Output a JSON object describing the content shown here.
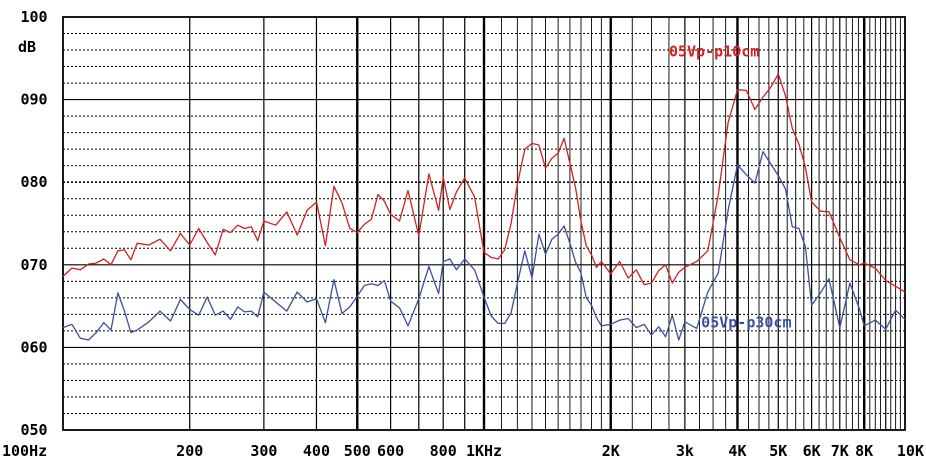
{
  "chart_data": {
    "type": "line",
    "ylabel": "dB",
    "ylim": [
      50,
      100
    ],
    "xlim": [
      100,
      10000
    ],
    "x_scale": "log",
    "grid": true,
    "y_ticks": [
      {
        "value": 100,
        "label": "100"
      },
      {
        "value": 90,
        "label": "090"
      },
      {
        "value": 80,
        "label": "080"
      },
      {
        "value": 70,
        "label": "070"
      },
      {
        "value": 60,
        "label": "060"
      },
      {
        "value": 50,
        "label": "050"
      }
    ],
    "x_ticks": [
      {
        "value": 100,
        "label": "100Hz"
      },
      {
        "value": 200,
        "label": "200"
      },
      {
        "value": 300,
        "label": "300"
      },
      {
        "value": 400,
        "label": "400"
      },
      {
        "value": 500,
        "label": "500"
      },
      {
        "value": 600,
        "label": "600"
      },
      {
        "value": 800,
        "label": "800"
      },
      {
        "value": 1000,
        "label": "1KHz"
      },
      {
        "value": 2000,
        "label": "2K"
      },
      {
        "value": 3000,
        "label": "3k"
      },
      {
        "value": 4000,
        "label": "4K"
      },
      {
        "value": 5000,
        "label": "5K"
      },
      {
        "value": 6000,
        "label": "6K"
      },
      {
        "value": 7000,
        "label": "7K"
      },
      {
        "value": 8000,
        "label": "8K"
      },
      {
        "value": 10000,
        "label": "10K"
      }
    ],
    "series": [
      {
        "name": "05Vp-p10cm",
        "color": "#d42020",
        "x": [
          100,
          105,
          110,
          115,
          120,
          125,
          130,
          135,
          140,
          145,
          150,
          160,
          170,
          180,
          190,
          200,
          210,
          220,
          230,
          240,
          250,
          260,
          270,
          280,
          290,
          300,
          320,
          340,
          360,
          380,
          400,
          420,
          440,
          460,
          480,
          500,
          520,
          540,
          560,
          580,
          600,
          630,
          660,
          700,
          740,
          780,
          800,
          830,
          860,
          900,
          950,
          1000,
          1040,
          1080,
          1120,
          1160,
          1200,
          1250,
          1300,
          1350,
          1400,
          1450,
          1500,
          1550,
          1600,
          1650,
          1700,
          1750,
          1800,
          1850,
          1900,
          2000,
          2100,
          2200,
          2300,
          2400,
          2500,
          2600,
          2700,
          2800,
          2900,
          3000,
          3200,
          3400,
          3600,
          3800,
          4000,
          4200,
          4400,
          4600,
          4800,
          5000,
          5200,
          5400,
          5600,
          5800,
          6000,
          6300,
          6600,
          7000,
          7400,
          7800,
          8000,
          8500,
          9000,
          9500,
          10000
        ],
        "y": [
          68.6,
          69.6,
          69.4,
          70.1,
          70.2,
          70.7,
          70.0,
          71.7,
          71.8,
          70.6,
          72.6,
          72.4,
          73.1,
          71.7,
          73.8,
          72.4,
          74.4,
          72.7,
          71.2,
          74.3,
          73.9,
          74.8,
          74.4,
          74.6,
          72.9,
          75.3,
          74.8,
          76.4,
          73.6,
          76.6,
          77.6,
          72.3,
          79.5,
          77.5,
          74.4,
          73.9,
          74.9,
          75.5,
          78.5,
          77.7,
          76.1,
          75.3,
          79.0,
          73.5,
          81.0,
          76.6,
          80.6,
          76.7,
          78.8,
          80.5,
          78.2,
          71.5,
          70.9,
          70.7,
          71.8,
          75.0,
          79.7,
          84.0,
          84.7,
          84.5,
          81.7,
          82.9,
          83.5,
          85.3,
          82.3,
          79.3,
          75.2,
          72.3,
          71.2,
          69.7,
          70.4,
          68.9,
          70.4,
          68.4,
          69.4,
          67.6,
          67.8,
          69.3,
          70.0,
          67.8,
          69.1,
          69.7,
          70.4,
          71.7,
          78.4,
          87.2,
          91.2,
          91.1,
          88.8,
          90.3,
          91.5,
          93.1,
          90.5,
          86.5,
          84.6,
          81.8,
          77.6,
          76.5,
          76.4,
          73.3,
          70.6,
          70.0,
          70.2,
          69.6,
          68.1,
          67.4,
          66.7
        ]
      },
      {
        "name": "05Vp-p30cm",
        "color": "#3b4fa0",
        "x": [
          100,
          105,
          110,
          115,
          120,
          125,
          130,
          135,
          140,
          145,
          150,
          160,
          170,
          180,
          190,
          200,
          210,
          220,
          230,
          240,
          250,
          260,
          270,
          280,
          290,
          300,
          320,
          340,
          360,
          380,
          400,
          420,
          440,
          460,
          480,
          500,
          520,
          540,
          560,
          580,
          600,
          630,
          660,
          700,
          740,
          780,
          800,
          830,
          860,
          900,
          950,
          1000,
          1040,
          1080,
          1120,
          1160,
          1200,
          1250,
          1300,
          1350,
          1400,
          1450,
          1500,
          1550,
          1600,
          1650,
          1700,
          1750,
          1800,
          1850,
          1900,
          2000,
          2100,
          2200,
          2300,
          2400,
          2500,
          2600,
          2700,
          2800,
          2900,
          3000,
          3200,
          3400,
          3600,
          3800,
          4000,
          4200,
          4400,
          4600,
          4800,
          5000,
          5200,
          5400,
          5600,
          5800,
          6000,
          6300,
          6600,
          7000,
          7400,
          7800,
          8000,
          8500,
          9000,
          9500,
          10000
        ],
        "y": [
          62.4,
          62.8,
          61.1,
          60.9,
          61.8,
          63.0,
          62.1,
          66.6,
          64.4,
          61.8,
          62.1,
          63.1,
          64.4,
          63.2,
          65.8,
          64.6,
          63.9,
          66.1,
          63.9,
          64.4,
          63.4,
          64.9,
          64.3,
          64.4,
          63.7,
          66.7,
          65.5,
          64.4,
          66.7,
          65.5,
          65.9,
          63.0,
          68.2,
          64.1,
          64.9,
          66.2,
          67.5,
          67.7,
          67.5,
          68.1,
          65.6,
          64.8,
          62.6,
          65.9,
          69.8,
          66.5,
          70.4,
          70.7,
          69.4,
          70.7,
          69.4,
          66.1,
          63.8,
          62.9,
          62.9,
          64.2,
          67.7,
          71.7,
          68.4,
          73.7,
          71.3,
          73.1,
          73.7,
          74.7,
          72.6,
          70.3,
          69.0,
          66.0,
          65.1,
          63.6,
          62.6,
          62.8,
          63.3,
          63.5,
          62.4,
          62.8,
          61.5,
          62.5,
          61.3,
          63.9,
          60.9,
          63.1,
          62.3,
          66.7,
          69.0,
          76.6,
          82.1,
          80.9,
          79.9,
          83.7,
          82.2,
          80.8,
          79.2,
          74.6,
          74.4,
          72.2,
          65.1,
          66.6,
          68.3,
          62.4,
          67.8,
          64.6,
          62.6,
          63.3,
          62.2,
          64.5,
          63.4
        ]
      }
    ],
    "series_labels": [
      {
        "series": 0,
        "text": "05Vp-p10cm",
        "anchor_x": 2750,
        "anchor_y": 95.2
      },
      {
        "series": 1,
        "text": "05Vp-p30cm",
        "anchor_x": 3280,
        "anchor_y": 62.4
      }
    ]
  }
}
